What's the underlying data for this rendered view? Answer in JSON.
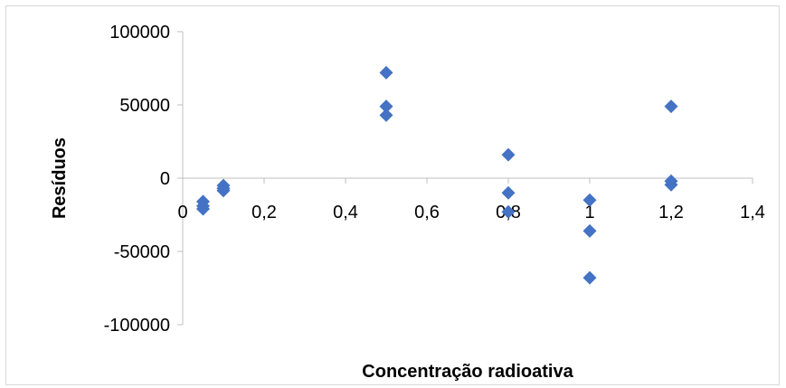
{
  "chart_data": {
    "type": "scatter",
    "title": "",
    "xlabel": "Concentração radioativa",
    "ylabel": "Resíduos",
    "xlim": [
      0,
      1.4
    ],
    "ylim": [
      -100000,
      100000
    ],
    "x_ticks": [
      0,
      0.2,
      0.4,
      0.6,
      0.8,
      1.0,
      1.2,
      1.4
    ],
    "x_tick_labels": [
      "0",
      "0,2",
      "0,4",
      "0,6",
      "0,8",
      "1",
      "1,2",
      "1,4"
    ],
    "y_ticks": [
      100000,
      50000,
      0,
      -50000,
      -100000
    ],
    "y_tick_labels": [
      "100000",
      "50000",
      "0",
      "-50000",
      "-100000"
    ],
    "grid": false,
    "legend": "none",
    "marker": "diamond",
    "marker_color": "#4472c4",
    "series": [
      {
        "points": [
          {
            "x": 0.05,
            "y": -16000
          },
          {
            "x": 0.05,
            "y": -19000
          },
          {
            "x": 0.05,
            "y": -21000
          },
          {
            "x": 0.1,
            "y": -5000
          },
          {
            "x": 0.1,
            "y": -7000
          },
          {
            "x": 0.1,
            "y": -8500
          },
          {
            "x": 0.5,
            "y": 72000
          },
          {
            "x": 0.5,
            "y": 49000
          },
          {
            "x": 0.5,
            "y": 43000
          },
          {
            "x": 0.8,
            "y": 16000
          },
          {
            "x": 0.8,
            "y": -10000
          },
          {
            "x": 0.8,
            "y": -23000
          },
          {
            "x": 1.0,
            "y": -15000
          },
          {
            "x": 1.0,
            "y": -36000
          },
          {
            "x": 1.0,
            "y": -68000
          },
          {
            "x": 1.2,
            "y": 49000
          },
          {
            "x": 1.2,
            "y": -2000
          },
          {
            "x": 1.2,
            "y": -4500
          }
        ]
      }
    ]
  }
}
